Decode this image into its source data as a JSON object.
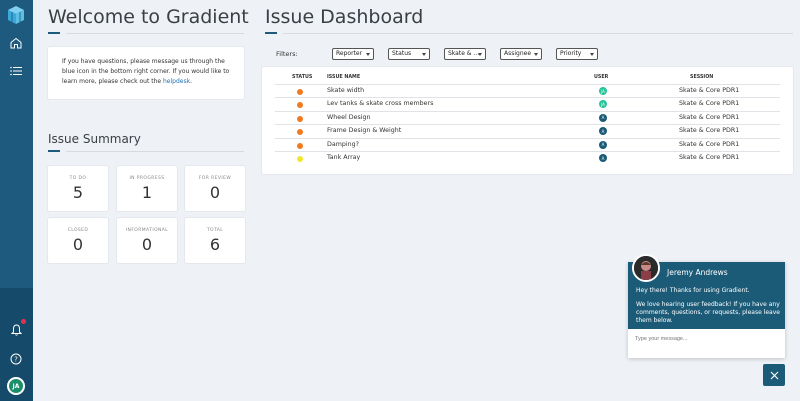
{
  "colors": {
    "sidebar": "#1e5a7e",
    "accent": "#1e5a7e",
    "status_orange": "#f07a1f",
    "status_yellow": "#f2e72c",
    "user_teal": "#2ac49b",
    "user_dark": "#1b5b78"
  },
  "sidebar": {
    "icons": [
      "logo-cube-icon",
      "home-icon",
      "list-icon",
      "bell-icon",
      "help-icon"
    ],
    "avatar": "JA"
  },
  "welcome": {
    "title": "Welcome to Gradient",
    "info_text": "If you have questions, please message us through the blue icon in the bottom right corner. If you would like to learn more, please check out the ",
    "info_link": "helpdesk",
    "info_end": "."
  },
  "summary": {
    "title": "Issue Summary",
    "tiles": [
      {
        "label": "TO DO",
        "value": "5"
      },
      {
        "label": "IN PROGRESS",
        "value": "1"
      },
      {
        "label": "FOR REVIEW",
        "value": "0"
      },
      {
        "label": "CLOSED",
        "value": "0"
      },
      {
        "label": "INFORMATIONAL",
        "value": "0"
      },
      {
        "label": "TOTAL",
        "value": "6"
      }
    ]
  },
  "dashboard": {
    "title": "Issue Dashboard",
    "filters_label": "Filters:",
    "filters": [
      "Reporter",
      "Status",
      "Skate & ...",
      "Assignee",
      "Priority"
    ],
    "columns": {
      "status": "STATUS",
      "name": "ISSUE NAME",
      "user": "USER",
      "session": "SESSION"
    },
    "issues": [
      {
        "name": "Skate width",
        "status": "orange",
        "user": "JA",
        "user_color": "teal",
        "session": "Skate & Core PDR1"
      },
      {
        "name": "Lev tanks & skate cross members",
        "status": "orange",
        "user": "JA",
        "user_color": "teal",
        "session": "Skate & Core PDR1"
      },
      {
        "name": "Wheel Design",
        "status": "orange",
        "user": "A",
        "user_color": "dark",
        "session": "Skate & Core PDR1"
      },
      {
        "name": "Frame Design & Weight",
        "status": "orange",
        "user": "A",
        "user_color": "dark",
        "session": "Skate & Core PDR1"
      },
      {
        "name": "Damping?",
        "status": "orange",
        "user": "A",
        "user_color": "dark",
        "session": "Skate & Core PDR1"
      },
      {
        "name": "Tank Array",
        "status": "yellow",
        "user": "A",
        "user_color": "dark",
        "session": "Skate & Core PDR1"
      }
    ]
  },
  "chat": {
    "agent_name": "Jeremy Andrews",
    "message_1": "Hey there! Thanks for using Gradient.",
    "message_2": "We love hearing user feedback! If you have any comments, questions, or requests, please leave them below.",
    "input_placeholder": "Type your message..."
  }
}
